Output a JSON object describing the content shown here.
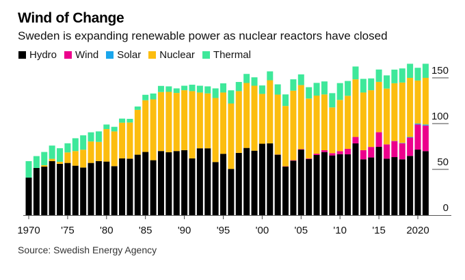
{
  "chart_data": {
    "type": "bar",
    "stacked": true,
    "title": "Wind of Change",
    "subtitle": "Sweden is expanding renewable power as nuclear reactors have closed",
    "xlabel": "",
    "ylabel": "",
    "ylim": [
      0,
      170
    ],
    "yticks": [
      0,
      50,
      100,
      150
    ],
    "ytick_labels": [
      "0",
      "50",
      "100",
      "150"
    ],
    "y_axis_side": "right",
    "grid": false,
    "legend_position": "top-left",
    "xtick_years": [
      1970,
      1975,
      1980,
      1985,
      1990,
      1995,
      2000,
      2005,
      2010,
      2015,
      2020
    ],
    "xtick_labels": [
      "1970",
      "'75",
      "'80",
      "'85",
      "'90",
      "'95",
      "'00",
      "'05",
      "'10",
      "'15",
      "2020"
    ],
    "categories": [
      1970,
      1971,
      1972,
      1973,
      1974,
      1975,
      1976,
      1977,
      1978,
      1979,
      1980,
      1981,
      1982,
      1983,
      1984,
      1985,
      1986,
      1987,
      1988,
      1989,
      1990,
      1991,
      1992,
      1993,
      1994,
      1995,
      1996,
      1997,
      1998,
      1999,
      2000,
      2001,
      2002,
      2003,
      2004,
      2005,
      2006,
      2007,
      2008,
      2009,
      2010,
      2011,
      2012,
      2013,
      2014,
      2015,
      2016,
      2017,
      2018,
      2019,
      2020,
      2021
    ],
    "series": [
      {
        "name": "Hydro",
        "color": "#000000",
        "values": [
          41,
          51.5,
          53,
          59,
          56,
          57,
          54,
          52,
          57,
          59,
          58.5,
          53.5,
          62,
          61.7,
          66,
          69,
          60,
          70,
          68.7,
          70,
          71,
          62,
          73,
          73,
          58,
          67,
          50.5,
          68,
          73.4,
          70.4,
          78,
          78.4,
          66,
          53,
          59.5,
          71.6,
          61.4,
          65.7,
          68.9,
          65.2,
          66.6,
          66.4,
          78.4,
          61,
          63,
          74.6,
          61.7,
          63.4,
          61,
          64.7,
          71.6,
          69.9
        ]
      },
      {
        "name": "Wind",
        "color": "#ec008c",
        "values": [
          0,
          0,
          0,
          0,
          0,
          0,
          0,
          0,
          0,
          0,
          0,
          0,
          0,
          0,
          0,
          0,
          0,
          0,
          0,
          0,
          0,
          0,
          0,
          0,
          0,
          0,
          0,
          0,
          0,
          0,
          0,
          0,
          0.2,
          0.3,
          0.5,
          0.5,
          0.5,
          1.4,
          2,
          2.5,
          3.3,
          6,
          7,
          10,
          11.5,
          16,
          15.5,
          17.5,
          17.5,
          20,
          27.5,
          28
        ]
      },
      {
        "name": "Solar",
        "color": "#1aa6ec",
        "values": [
          0,
          0,
          0,
          0,
          0,
          0,
          0,
          0,
          0,
          0,
          0,
          0,
          0,
          0,
          0,
          0,
          0,
          0,
          0,
          0,
          0,
          0,
          0,
          0,
          0,
          0,
          0,
          0,
          0,
          0,
          0,
          0,
          0,
          0,
          0,
          0,
          0,
          0,
          0,
          0,
          0,
          0,
          0,
          0,
          0,
          0,
          0.1,
          0.2,
          0.4,
          0.7,
          1,
          1.1
        ]
      },
      {
        "name": "Nuclear",
        "color": "#fcbd0f",
        "values": [
          0,
          0,
          1.5,
          2.5,
          2.3,
          11.5,
          16,
          19.5,
          23.5,
          21,
          35.5,
          38,
          39,
          39.5,
          49,
          56.5,
          66.5,
          64.5,
          66,
          63.5,
          65.5,
          73.5,
          61,
          60,
          70,
          67,
          71.5,
          67.5,
          71,
          71,
          54.5,
          69,
          65.5,
          66,
          76,
          70,
          65.5,
          63.5,
          61,
          50,
          56,
          58,
          63,
          63,
          62,
          55,
          61,
          63,
          66,
          64.6,
          47,
          51
        ]
      },
      {
        "name": "Thermal",
        "color": "#3ee89a",
        "values": [
          18,
          13,
          14.5,
          14.5,
          14.8,
          10,
          14,
          15.7,
          10,
          11.5,
          5,
          5,
          4.5,
          4,
          3.7,
          6,
          6.4,
          6.7,
          6,
          5,
          4.9,
          7,
          7.4,
          7.7,
          10.5,
          10,
          14.4,
          10,
          9.9,
          9.2,
          9.2,
          9.7,
          11.2,
          12.6,
          12.4,
          11.7,
          12.4,
          13.9,
          14.2,
          15.6,
          18.4,
          16.2,
          14,
          14.9,
          12.9,
          13.5,
          14.4,
          14.9,
          15.4,
          15.4,
          13.9,
          15.4
        ]
      }
    ]
  },
  "header": {
    "title": "Wind of Change",
    "subtitle": "Sweden is expanding renewable power as nuclear reactors have closed"
  },
  "legend": [
    {
      "label": "Hydro",
      "color": "#000000"
    },
    {
      "label": "Wind",
      "color": "#ec008c"
    },
    {
      "label": "Solar",
      "color": "#1aa6ec"
    },
    {
      "label": "Nuclear",
      "color": "#fcbd0f"
    },
    {
      "label": "Thermal",
      "color": "#3ee89a"
    }
  ],
  "footer": {
    "source": "Source: Swedish Energy Agency"
  }
}
